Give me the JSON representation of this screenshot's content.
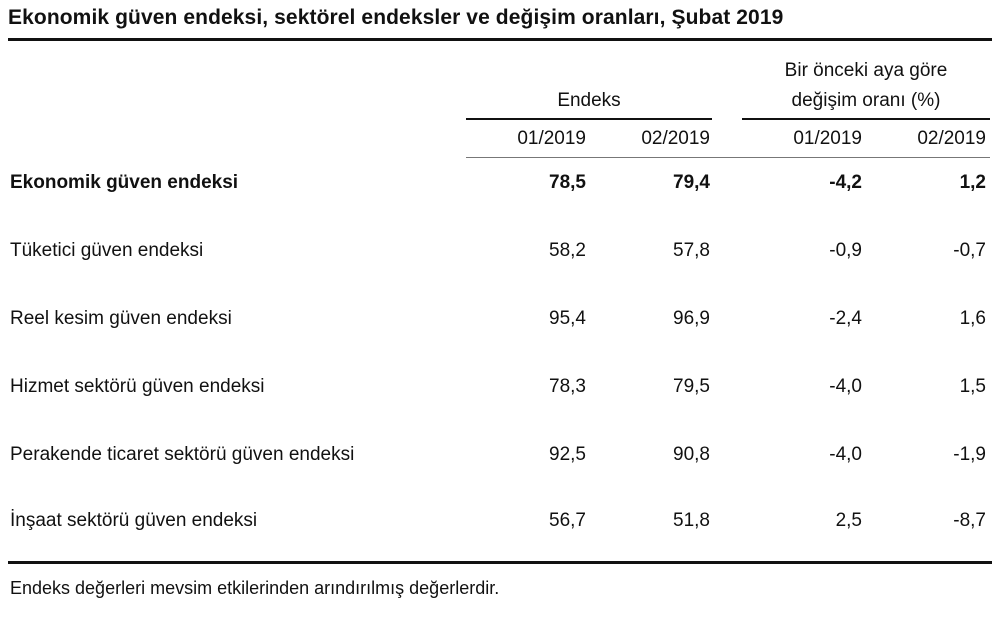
{
  "title": "Ekonomik güven endeksi, sektörel endeksler ve değişim oranları, Şubat 2019",
  "groups": {
    "index_label": "Endeks",
    "change_label_line1": "Bir önceki aya göre",
    "change_label_line2": "değişim oranı (%)"
  },
  "columns": [
    "01/2019",
    "02/2019",
    "01/2019",
    "02/2019"
  ],
  "rows": [
    {
      "label": "Ekonomik güven endeksi",
      "values": [
        "78,5",
        "79,4",
        "-4,2",
        "1,2"
      ],
      "bold": true
    },
    {
      "label": "Tüketici güven endeksi",
      "values": [
        "58,2",
        "57,8",
        "-0,9",
        "-0,7"
      ]
    },
    {
      "label": "Reel kesim güven endeksi",
      "values": [
        "95,4",
        "96,9",
        "-2,4",
        "1,6"
      ]
    },
    {
      "label": "Hizmet sektörü güven endeksi",
      "values": [
        "78,3",
        "79,5",
        "-4,0",
        "1,5"
      ]
    },
    {
      "label": "Perakende ticaret sektörü güven endeksi",
      "values": [
        "92,5",
        "90,8",
        "-4,0",
        "-1,9"
      ]
    },
    {
      "label": "İnşaat sektörü güven endeksi",
      "values": [
        "56,7",
        "51,8",
        "2,5",
        "-8,7"
      ]
    }
  ],
  "footnote": "Endeks değerleri mevsim etkilerinden arındırılmış değerlerdir."
}
